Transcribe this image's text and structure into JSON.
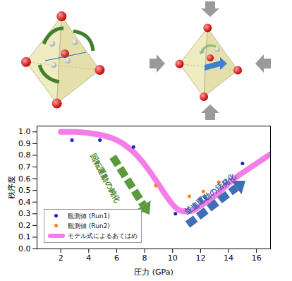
{
  "chart_data": {
    "type": "scatter",
    "x_label": "圧力 (GPa)",
    "y_label": "秩序度",
    "xlim": [
      0.3,
      17
    ],
    "ylim": [
      0,
      1.05
    ],
    "xticks": [
      2,
      4,
      6,
      8,
      10,
      12,
      14,
      16
    ],
    "yticks": [
      {
        "value": 0,
        "label": "0.0"
      },
      0.1,
      0.2,
      0.3,
      0.4,
      0.5,
      0.6,
      0.7,
      0.8,
      0.9,
      {
        "value": 1,
        "label": "1.0"
      }
    ],
    "grid": false,
    "legend": "lower left",
    "annotations": [
      "回転運動の鈍化",
      "並進運動の活発化"
    ],
    "series": [
      {
        "name": "観測値 (Run1)",
        "type": "scatter",
        "marker": "circle",
        "color": "#1f1fcc",
        "x": [
          2.8,
          4.8,
          7.2,
          10.2,
          15.0
        ],
        "values": [
          0.93,
          0.93,
          0.87,
          0.3,
          0.73
        ]
      },
      {
        "name": "観測値 (Run2)",
        "type": "scatter",
        "marker": "circle",
        "color": "#ff7f0e",
        "x": [
          8.8,
          11.2,
          12.2,
          13.3
        ],
        "values": [
          0.54,
          0.45,
          0.49,
          0.57
        ]
      },
      {
        "name": "モデル式によるあてはめ",
        "type": "line",
        "line_style": "solid",
        "color": "#f47ee8",
        "x": [
          2,
          3,
          4,
          5,
          6,
          7,
          8,
          9,
          9.5,
          10,
          10.5,
          11,
          11.5,
          12,
          13,
          14,
          15,
          16,
          17
        ],
        "values": [
          1.0,
          1.0,
          0.99,
          0.97,
          0.93,
          0.85,
          0.72,
          0.55,
          0.46,
          0.38,
          0.33,
          0.32,
          0.33,
          0.37,
          0.45,
          0.56,
          0.65,
          0.73,
          0.81
        ]
      }
    ]
  }
}
